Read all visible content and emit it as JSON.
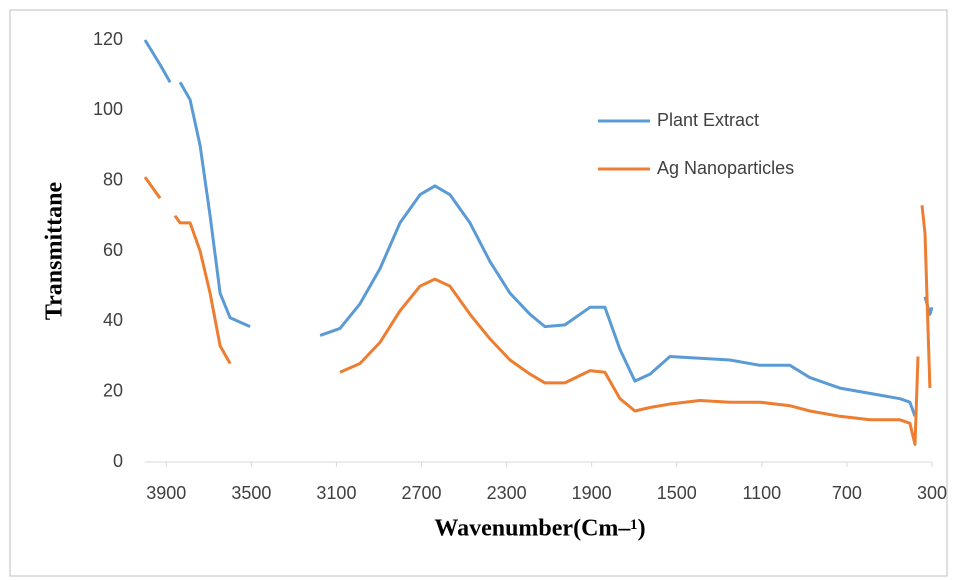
{
  "chart_data": {
    "type": "line",
    "x_label": "Wavenumber(Cm–¹)",
    "y_label": "Transmittane",
    "x": [
      4000,
      3929,
      3882,
      3859,
      3835,
      3788,
      3741,
      3694,
      3647,
      3600,
      3506,
      3459,
      3412,
      3318,
      3271,
      3224,
      3177,
      3083,
      2989,
      2895,
      2801,
      2707,
      2637,
      2566,
      2472,
      2378,
      2284,
      2190,
      2120,
      2026,
      1908,
      1838,
      1767,
      1697,
      1626,
      1532,
      1391,
      1250,
      1109,
      968,
      874,
      733,
      592,
      451,
      404,
      380,
      366,
      357,
      347,
      333,
      310,
      300
    ],
    "series": [
      {
        "name": "Plant Extract",
        "color": "#5b9bd5",
        "values": [
          120,
          113,
          108,
          null,
          108,
          103,
          90,
          70,
          48,
          41,
          38.5,
          null,
          37,
          null,
          35.8,
          null,
          36,
          38,
          45,
          55,
          68,
          76,
          78.5,
          76,
          68,
          57,
          48,
          42,
          38.5,
          39,
          44,
          44,
          32,
          23,
          25,
          30,
          29.5,
          29,
          27.5,
          27.5,
          24,
          21,
          19.5,
          18,
          17,
          13,
          null,
          30,
          null,
          47,
          42,
          44
        ]
      },
      {
        "name": "Ag Nanoparticles",
        "color": "#ed7d31",
        "values": [
          81,
          75,
          null,
          70,
          68,
          68,
          60,
          48,
          33,
          28,
          null,
          27,
          null,
          26.5,
          null,
          25,
          null,
          25.5,
          28,
          34,
          43,
          50,
          52,
          50,
          42,
          35,
          29,
          25,
          22.5,
          22.5,
          26,
          25.5,
          18,
          14.5,
          15.5,
          16.5,
          17.5,
          17,
          17,
          16,
          14.5,
          13,
          12,
          12,
          11,
          5,
          30,
          null,
          73,
          65,
          21,
          null
        ]
      }
    ],
    "xlim": [
      4000,
      300
    ],
    "xticks": [
      3900,
      3500,
      3100,
      2700,
      2300,
      1900,
      1500,
      1100,
      700,
      300
    ],
    "ylim": [
      0,
      120
    ],
    "yticks": [
      0,
      20,
      40,
      60,
      80,
      100,
      120
    ],
    "grid": false,
    "legend": "upper right"
  }
}
